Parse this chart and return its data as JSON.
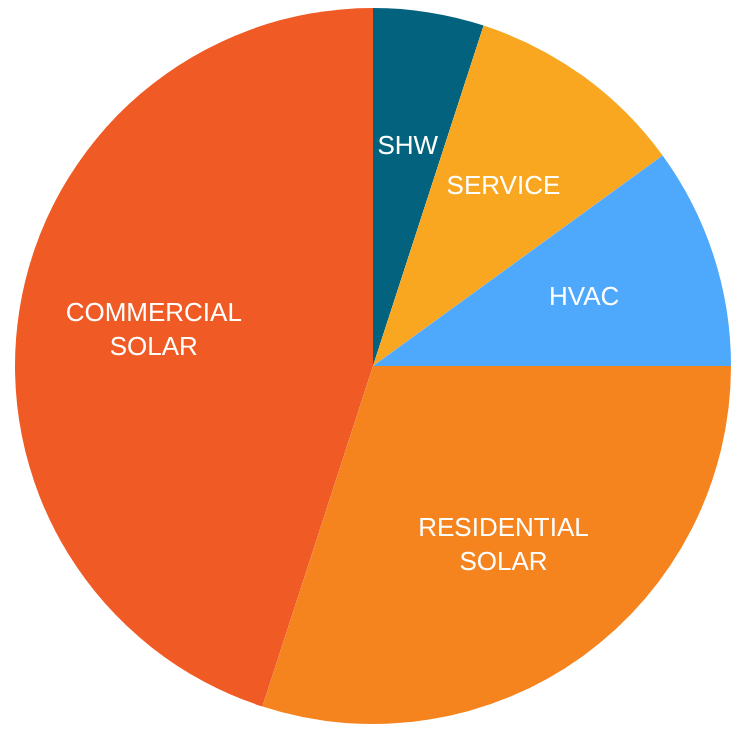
{
  "chart_data": {
    "type": "pie",
    "categories": [
      "SHW",
      "SERVICE",
      "HVAC",
      "RESIDENTIAL SOLAR",
      "COMMERCIAL SOLAR"
    ],
    "values": [
      5,
      10,
      10,
      30,
      45
    ],
    "colors": [
      "#03637f",
      "#f9a620",
      "#4ea8fb",
      "#f5841f",
      "#f05a24"
    ]
  }
}
